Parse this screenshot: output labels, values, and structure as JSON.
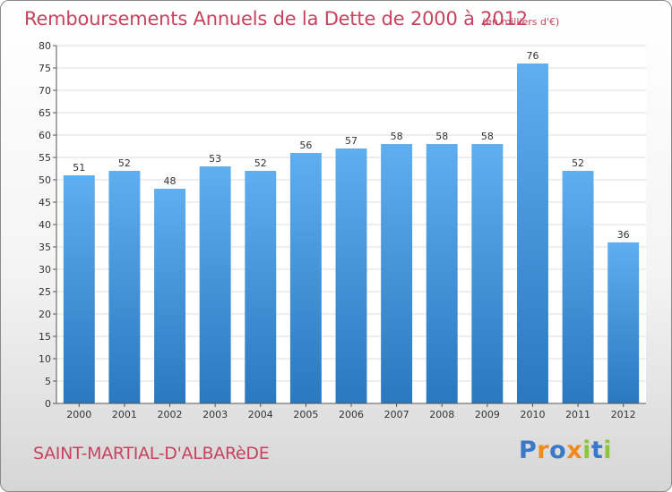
{
  "chart_data": {
    "type": "bar",
    "title": "Remboursements Annuels de la Dette de 2000 à 2012",
    "unit": "(en milliers d'€)",
    "categories": [
      "2000",
      "2001",
      "2002",
      "2003",
      "2004",
      "2005",
      "2006",
      "2007",
      "2008",
      "2009",
      "2010",
      "2011",
      "2012"
    ],
    "values": [
      51,
      52,
      48,
      53,
      52,
      56,
      57,
      58,
      58,
      58,
      76,
      52,
      36
    ],
    "ylim": [
      0,
      80
    ],
    "yticks": [
      0,
      5,
      10,
      15,
      20,
      25,
      30,
      35,
      40,
      45,
      50,
      55,
      60,
      65,
      70,
      75,
      80
    ],
    "grid": true,
    "bar_color": "#4f9fe0"
  },
  "commune": "SAINT-MARTIAL-D'ALBARèDE",
  "logo": {
    "text": "Proxiti",
    "letter_colors": [
      "#3a78c8",
      "#f08a1c",
      "#3a78c8",
      "#f08a1c",
      "#8cc63f",
      "#3a78c8",
      "#8cc63f"
    ]
  }
}
